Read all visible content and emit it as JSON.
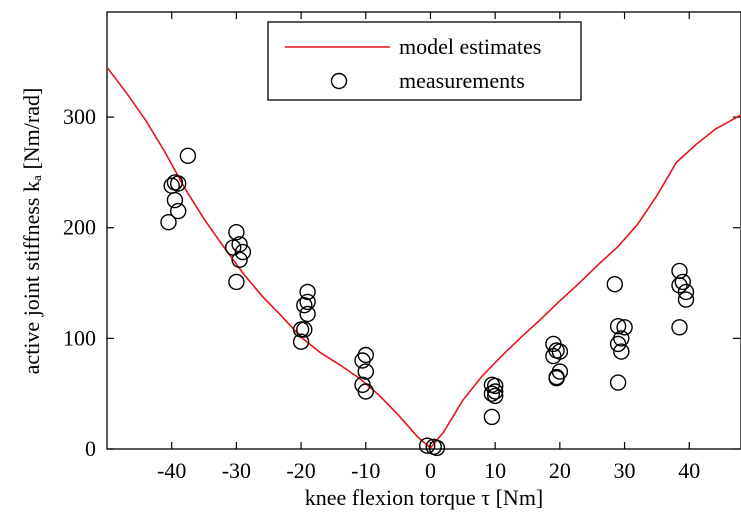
{
  "chart_data": {
    "type": "scatter",
    "xlabel": "knee flexion torque τ [Nm]",
    "ylabel": "active joint stiffness kₐ [Nm/rad]",
    "xlim": [
      -50,
      48
    ],
    "ylim": [
      0,
      395
    ],
    "xticks": [
      -40,
      -30,
      -20,
      -10,
      0,
      10,
      20,
      30,
      40
    ],
    "yticks": [
      0,
      100,
      200,
      300
    ],
    "xtick_labels": [
      "-40",
      "-30",
      "-20",
      "-10",
      "0",
      "10",
      "20",
      "30",
      "40"
    ],
    "ytick_labels": [
      "0",
      "100",
      "200",
      "300"
    ],
    "grid": false,
    "legend_position": "top-center",
    "series": [
      {
        "name": "model estimates",
        "type": "line",
        "color": "#e8131b",
        "x": [
          -50,
          -47,
          -44,
          -41,
          -38,
          -35,
          -32,
          -29,
          -26,
          -23,
          -20,
          -17,
          -14,
          -11,
          -8,
          -5,
          -2,
          0,
          2,
          5,
          8,
          11,
          14,
          17,
          20,
          23,
          26,
          29,
          32,
          35,
          38,
          41,
          44,
          48
        ],
        "y": [
          345,
          322,
          297,
          268,
          236,
          208,
          183,
          159,
          138,
          120,
          101,
          87,
          76,
          64,
          49,
          31,
          11,
          1,
          15,
          44,
          66,
          84,
          101,
          117,
          134,
          150,
          167,
          183,
          203,
          229,
          259,
          275,
          289,
          302
        ]
      },
      {
        "name": "measurements",
        "type": "scatter",
        "marker": "open-circle",
        "x": [
          -37.5,
          -39,
          -39.5,
          -40,
          -39.5,
          -39,
          -40.5,
          -30,
          -30.5,
          -29.5,
          -29,
          -29.5,
          -30,
          -19,
          -19,
          -19.5,
          -19,
          -20,
          -19.5,
          -20,
          -10,
          -10.5,
          -10,
          -10.5,
          -10,
          -0.5,
          0.5,
          1,
          9.5,
          10,
          10,
          9.5,
          10,
          9.5,
          19,
          19.5,
          20,
          19,
          20,
          19.5,
          19.5,
          28.5,
          29,
          30,
          29.5,
          29,
          29.5,
          29,
          38.5,
          39,
          38.5,
          39.5,
          39.5,
          38.5
        ],
        "y": [
          265,
          240,
          241,
          238,
          225,
          215,
          205,
          196,
          182,
          185,
          178,
          171,
          151,
          142,
          133,
          130,
          122,
          108,
          108,
          97,
          85,
          80,
          70,
          58,
          52,
          3,
          2,
          1,
          58,
          57,
          52,
          50,
          48,
          29,
          95,
          89,
          88,
          84,
          70,
          65,
          64,
          149,
          111,
          110,
          100,
          95,
          88,
          60,
          161,
          151,
          148,
          142,
          135,
          110
        ]
      }
    ]
  }
}
